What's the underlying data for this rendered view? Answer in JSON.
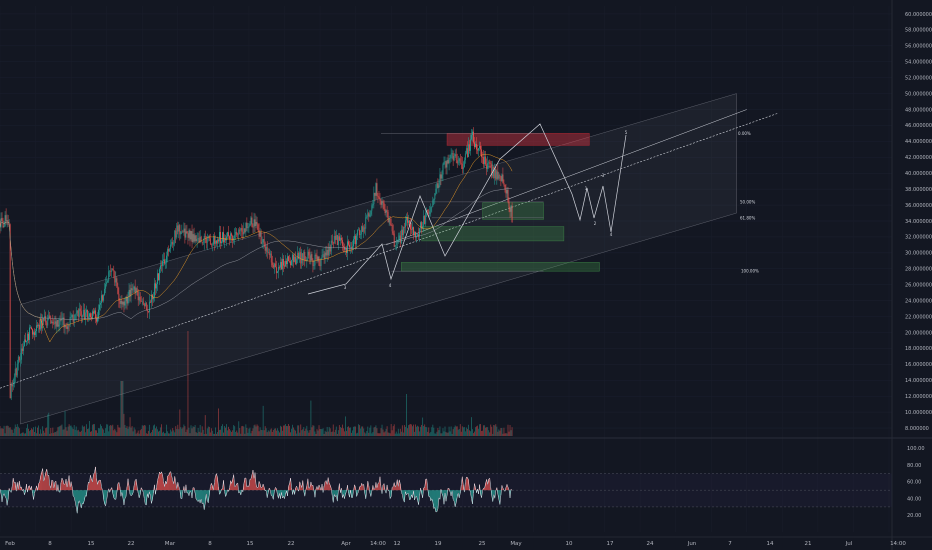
{
  "chart_data": {
    "type": "candlestick",
    "price_axis": {
      "ylim": [
        7,
        61
      ],
      "ticks": [
        "60.000000",
        "58.000000",
        "56.000000",
        "54.000000",
        "52.000000",
        "50.000000",
        "48.000000",
        "46.000000",
        "44.000000",
        "42.000000",
        "40.000000",
        "38.000000",
        "36.000000",
        "34.000000",
        "32.000000",
        "30.000000",
        "28.000000",
        "26.000000",
        "24.000000",
        "22.000000",
        "20.000000",
        "18.000000",
        "16.000000",
        "14.000000",
        "12.000000",
        "10.000000",
        "8.000000"
      ]
    },
    "oscillator_axis": {
      "ylim": [
        0,
        110
      ],
      "ticks": [
        "100.00",
        "80.00",
        "60.00",
        "40.00",
        "20.00"
      ]
    },
    "time_axis": {
      "labels": [
        "Feb",
        "8",
        "15",
        "22",
        "Mar",
        "8",
        "15",
        "22",
        "Apr",
        "14:00",
        "12",
        "19",
        "25",
        "May",
        "10",
        "17",
        "24",
        "Jun",
        "7",
        "14",
        "21",
        "Jul",
        "14:00"
      ]
    },
    "price_path": [
      [
        "2023-02-01",
        12.5
      ],
      [
        "2023-02-04",
        19.5
      ],
      [
        "2023-02-08",
        21.5
      ],
      [
        "2023-02-12",
        21.0
      ],
      [
        "2023-02-15",
        22.5
      ],
      [
        "2023-02-18",
        22.0
      ],
      [
        "2023-02-21",
        28.5
      ],
      [
        "2023-02-23",
        23.0
      ],
      [
        "2023-02-25",
        25.5
      ],
      [
        "2023-02-28",
        23.0
      ],
      [
        "2023-03-03",
        28.5
      ],
      [
        "2023-03-06",
        33.0
      ],
      [
        "2023-03-09",
        32.0
      ],
      [
        "2023-03-12",
        31.5
      ],
      [
        "2023-03-15",
        32.0
      ],
      [
        "2023-03-18",
        32.5
      ],
      [
        "2023-03-21",
        34.0
      ],
      [
        "2023-03-23",
        31.0
      ],
      [
        "2023-03-25",
        28.0
      ],
      [
        "2023-03-28",
        29.0
      ],
      [
        "2023-03-31",
        29.5
      ],
      [
        "2023-04-03",
        28.8
      ],
      [
        "2023-04-06",
        31.5
      ],
      [
        "2023-04-09",
        30.5
      ],
      [
        "2023-04-12",
        34.0
      ],
      [
        "2023-04-14",
        38.0
      ],
      [
        "2023-04-16",
        35.0
      ],
      [
        "2023-04-18",
        30.5
      ],
      [
        "2023-04-20",
        34.0
      ],
      [
        "2023-04-22",
        32.0
      ],
      [
        "2023-04-25",
        36.0
      ],
      [
        "2023-04-27",
        40.5
      ],
      [
        "2023-04-29",
        42.0
      ],
      [
        "2023-05-01",
        41.0
      ],
      [
        "2023-05-03",
        44.5
      ],
      [
        "2023-05-05",
        42.0
      ],
      [
        "2023-05-07",
        40.0
      ],
      [
        "2023-05-09",
        39.5
      ],
      [
        "2023-05-10",
        37.0
      ],
      [
        "2023-05-11",
        34.0
      ]
    ],
    "zones": [
      {
        "type": "supply",
        "from": "2023-04-28",
        "to": "2023-05-26",
        "y1": 43.5,
        "y2": 45.0
      },
      {
        "type": "demand",
        "from": "2023-05-05",
        "to": "2023-05-17",
        "y1": 34.2,
        "y2": 36.3
      },
      {
        "type": "demand",
        "from": "2023-04-23",
        "to": "2023-05-21",
        "y1": 31.5,
        "y2": 33.3
      },
      {
        "type": "demand",
        "from": "2023-04-19",
        "to": "2023-05-28",
        "y1": 27.7,
        "y2": 28.8
      }
    ],
    "fib_levels": [
      {
        "label": "0.00%",
        "value": 45.0
      },
      {
        "label": "50.00%",
        "value": 36.4
      },
      {
        "label": "61.80%",
        "value": 34.4
      },
      {
        "label": "100.00%",
        "value": 27.7
      }
    ],
    "wave_labels": [
      "3",
      "4",
      "1",
      "2",
      "3",
      "4",
      "5"
    ],
    "oscillator_levels": [
      70,
      50,
      30
    ]
  }
}
